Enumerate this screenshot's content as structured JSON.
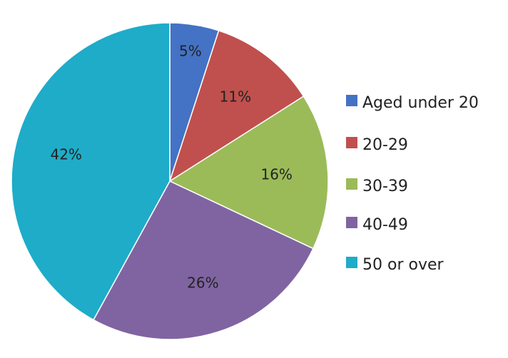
{
  "chart_data": {
    "type": "pie",
    "title": "",
    "legend_position": "right",
    "categories": [
      "Aged under 20",
      "20-29",
      "30-39",
      "40-49",
      "50 or over"
    ],
    "values": [
      5,
      11,
      16,
      26,
      42
    ],
    "labels": [
      "5%",
      "11%",
      "16%",
      "26%",
      "42%"
    ],
    "colors": [
      "#4472C4",
      "#C0504D",
      "#9BBB59",
      "#8064A2",
      "#1EACC9"
    ],
    "start_angle_deg": 0,
    "direction": "clockwise"
  }
}
